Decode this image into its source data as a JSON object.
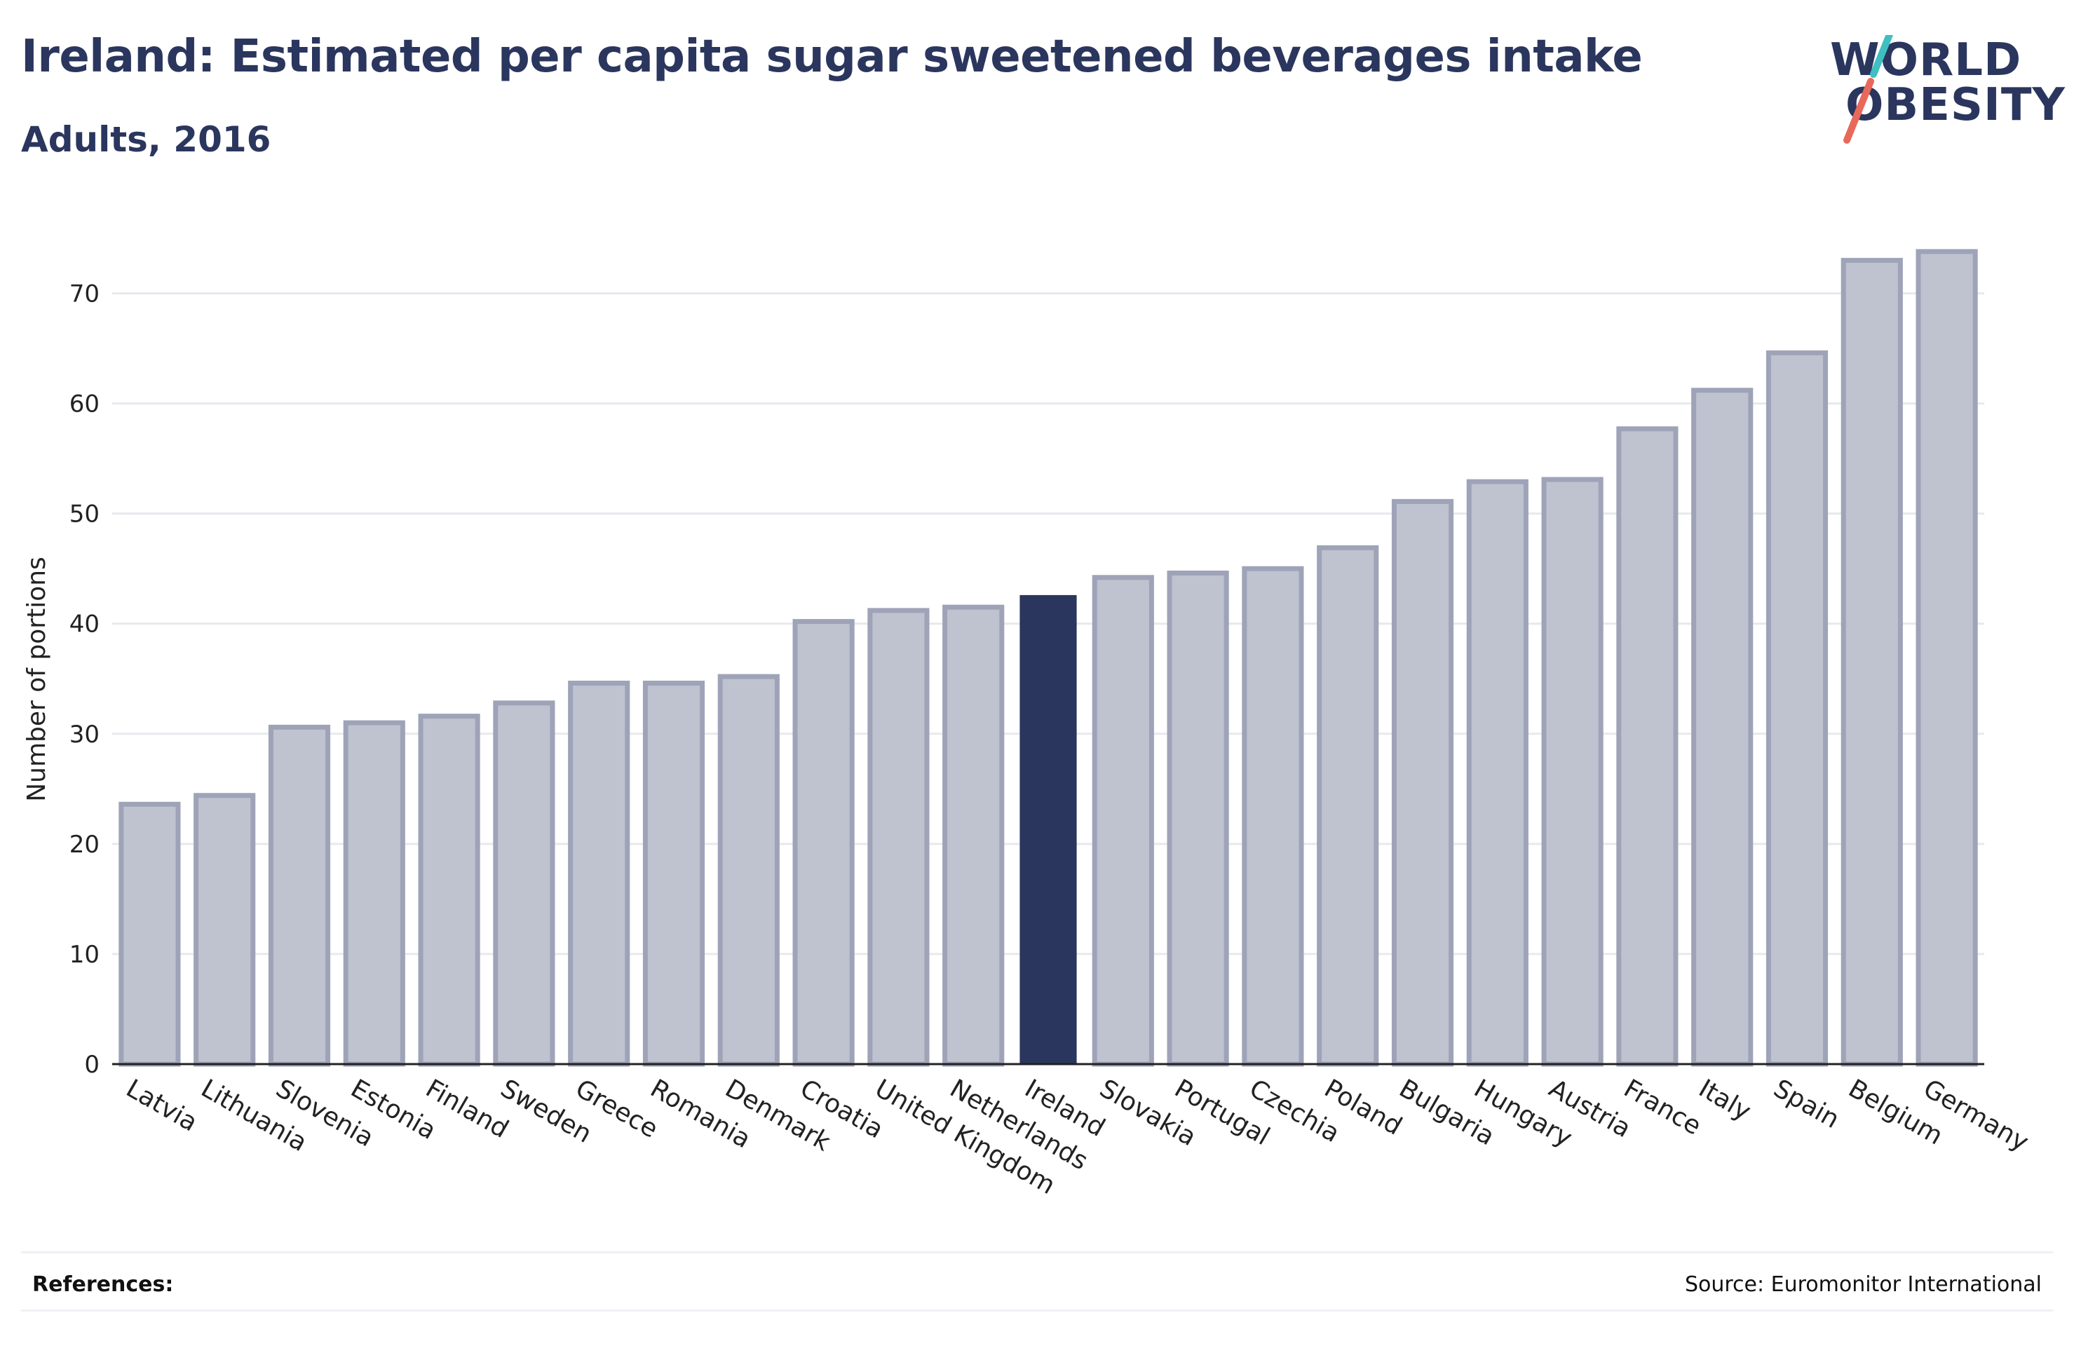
{
  "header": {
    "title": "Ireland: Estimated per capita sugar sweetened beverages intake",
    "subtitle": "Adults, 2016"
  },
  "logo": {
    "line1": "WORLD",
    "line2": "OBESITY",
    "colors": {
      "text": "#2b365e",
      "slash_top": "#3fbfbf",
      "slash_bottom": "#e8695a"
    }
  },
  "footer": {
    "references_label": "References:",
    "source": "Source: Euromonitor International"
  },
  "colors": {
    "bar": "#bfc2cf",
    "bar_border": "#9ea3b8",
    "highlight": "#2b365e",
    "grid": "#e8e9ee",
    "axis": "#222222"
  },
  "chart_data": {
    "type": "bar",
    "title": "Ireland: Estimated per capita sugar sweetened beverages intake",
    "subtitle": "Adults, 2016",
    "xlabel": "",
    "ylabel": "Number of portions",
    "ylim": [
      0,
      75
    ],
    "yticks": [
      0,
      10,
      20,
      30,
      40,
      50,
      60,
      70
    ],
    "grid": true,
    "highlight": "Ireland",
    "categories": [
      "Latvia",
      "Lithuania",
      "Slovenia",
      "Estonia",
      "Finland",
      "Sweden",
      "Greece",
      "Romania",
      "Denmark",
      "Croatia",
      "United Kingdom",
      "Netherlands",
      "Ireland",
      "Slovakia",
      "Portugal",
      "Czechia",
      "Poland",
      "Bulgaria",
      "Hungary",
      "Austria",
      "France",
      "Italy",
      "Spain",
      "Belgium",
      "Germany"
    ],
    "values": [
      23.6,
      24.4,
      30.6,
      31.0,
      31.6,
      32.8,
      34.6,
      34.6,
      35.2,
      40.2,
      41.2,
      41.5,
      42.6,
      44.2,
      44.6,
      45.0,
      46.9,
      51.1,
      52.9,
      53.1,
      57.7,
      61.2,
      64.6,
      73.0,
      73.8
    ]
  }
}
